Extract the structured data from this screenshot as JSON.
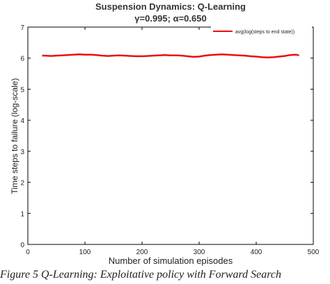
{
  "chart_data": {
    "type": "line",
    "title": "Suspension Dynamics: Q-Learning",
    "subtitle": "γ=0.995; α=0.650",
    "xlabel": "Number of simulation episodes",
    "ylabel": "Time steps to failure (log-scale)",
    "xlim": [
      0,
      500
    ],
    "ylim": [
      0,
      7
    ],
    "xticks": [
      0,
      100,
      200,
      300,
      400,
      500
    ],
    "yticks": [
      0,
      1,
      2,
      3,
      4,
      5,
      6,
      7
    ],
    "grid": false,
    "legend_position": "top-right",
    "series": [
      {
        "name": "avg(log(steps to end state))",
        "color": "#e81010",
        "x": [
          25,
          30,
          40,
          50,
          60,
          70,
          80,
          90,
          100,
          110,
          120,
          130,
          140,
          150,
          160,
          170,
          180,
          190,
          200,
          210,
          220,
          230,
          240,
          250,
          260,
          270,
          280,
          290,
          300,
          310,
          320,
          330,
          340,
          350,
          360,
          370,
          380,
          390,
          400,
          410,
          420,
          430,
          440,
          450,
          460,
          470,
          475
        ],
        "y": [
          6.08,
          6.08,
          6.07,
          6.08,
          6.09,
          6.1,
          6.11,
          6.12,
          6.11,
          6.11,
          6.1,
          6.08,
          6.07,
          6.08,
          6.09,
          6.08,
          6.07,
          6.06,
          6.06,
          6.07,
          6.08,
          6.09,
          6.1,
          6.09,
          6.09,
          6.08,
          6.06,
          6.04,
          6.05,
          6.08,
          6.1,
          6.11,
          6.12,
          6.11,
          6.1,
          6.09,
          6.08,
          6.06,
          6.05,
          6.03,
          6.02,
          6.03,
          6.05,
          6.07,
          6.1,
          6.11,
          6.09
        ]
      }
    ]
  },
  "caption": "Figure 5 Q-Learning: Exploitative policy with Forward Search"
}
